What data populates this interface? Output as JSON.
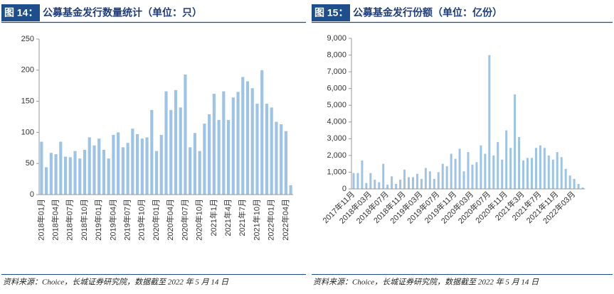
{
  "chart_data": [
    {
      "type": "bar",
      "figure_label": "图 14：",
      "title": "公募基金发行数量统计（单位：只）",
      "source": "资料来源：Choice，长城证券研究院，数据截至 2022 年 5 月 14 日",
      "color": "#9dc3e6",
      "categories": [
        "2018年01月",
        null,
        null,
        "2018年04月",
        null,
        null,
        "2018年07月",
        null,
        null,
        "2018年10月",
        null,
        null,
        "2019年01月",
        null,
        null,
        "2019年04月",
        null,
        null,
        "2019年07月",
        null,
        null,
        "2019年10月",
        null,
        null,
        "2020年01月",
        null,
        null,
        "2020年04月",
        null,
        null,
        "2020年07月",
        null,
        null,
        "2020年10月",
        null,
        null,
        "2021年1月",
        null,
        null,
        "2021年4月",
        null,
        null,
        "2021年7月",
        null,
        null,
        "2021年10月",
        null,
        null,
        "2022年01月",
        null,
        null,
        "2022年04月",
        null
      ],
      "values": [
        85,
        44,
        67,
        65,
        85,
        61,
        60,
        70,
        58,
        72,
        92,
        79,
        90,
        72,
        58,
        96,
        100,
        76,
        83,
        106,
        97,
        90,
        92,
        136,
        70,
        96,
        166,
        136,
        168,
        140,
        193,
        76,
        99,
        70,
        114,
        129,
        162,
        120,
        166,
        120,
        156,
        165,
        189,
        182,
        171,
        146,
        200,
        146,
        140,
        117,
        113,
        102,
        15
      ],
      "ylim": [
        0,
        250
      ],
      "yticks": [
        0,
        50,
        100,
        150,
        200,
        250
      ]
    },
    {
      "type": "bar",
      "figure_label": "图 15：",
      "title": "公募基金发行份额（单位：亿份）",
      "source": "资料来源：Choice，长城证券研究院，数据截至 2022 年 5 月 14 日",
      "color": "#9dc3e6",
      "categories": [
        "2017年11月",
        null,
        null,
        null,
        "2018年03月",
        null,
        null,
        null,
        "2018年07月",
        null,
        null,
        null,
        "2018年11月",
        null,
        null,
        null,
        "2019年03月",
        null,
        null,
        null,
        "2019年07月",
        null,
        null,
        null,
        "2019年11月",
        null,
        null,
        null,
        "2020年03月",
        null,
        null,
        null,
        "2020年07月",
        null,
        null,
        null,
        "2020年11月",
        null,
        null,
        null,
        "2021年3月",
        null,
        null,
        null,
        "2021年7月",
        null,
        null,
        null,
        "2021年11月",
        null,
        null,
        null,
        "2022年03月",
        null,
        null
      ],
      "values": [
        950,
        950,
        1700,
        350,
        950,
        550,
        400,
        1500,
        250,
        750,
        300,
        550,
        1150,
        700,
        700,
        900,
        600,
        1250,
        1050,
        600,
        1000,
        1500,
        1350,
        2100,
        1800,
        2400,
        1050,
        2200,
        1450,
        1600,
        2600,
        2100,
        8000,
        2000,
        2800,
        1750,
        3500,
        2450,
        5650,
        3100,
        1700,
        1850,
        1850,
        2450,
        2600,
        2450,
        2000,
        1750,
        2200,
        1900,
        1200,
        800,
        600,
        300,
        80
      ],
      "ylim": [
        0,
        9000
      ],
      "yticks": [
        0,
        {
          "value": 1000,
          "label": "1,000"
        },
        {
          "value": 2000,
          "label": "2,000"
        },
        {
          "value": 3000,
          "label": "3,000"
        },
        {
          "value": 4000,
          "label": "4,000"
        },
        {
          "value": 5000,
          "label": "5,000"
        },
        {
          "value": 6000,
          "label": "6,000"
        },
        {
          "value": 7000,
          "label": "7,000"
        },
        {
          "value": 8000,
          "label": "8,000"
        },
        {
          "value": 9000,
          "label": "9,000"
        }
      ]
    }
  ]
}
